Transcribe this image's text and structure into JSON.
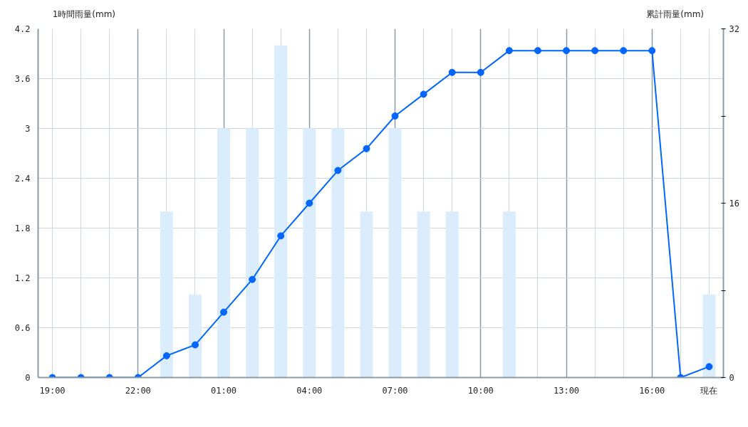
{
  "chart_data": {
    "type": "bar",
    "ylabel": "1時間雨量(mm)",
    "y2label": "累計雨量(mm)",
    "categories": [
      "19:00",
      null,
      null,
      "22:00",
      null,
      null,
      "01:00",
      null,
      null,
      "04:00",
      null,
      null,
      "07:00",
      null,
      null,
      "10:00",
      null,
      null,
      "13:00",
      null,
      null,
      "16:00",
      null,
      "現在"
    ],
    "series": [
      {
        "color": "#dbedfc",
        "values": [
          0,
          0,
          0,
          0,
          2,
          1,
          3,
          3,
          4,
          3,
          3,
          2,
          3,
          2,
          2,
          0,
          2,
          0,
          0,
          0,
          0,
          0,
          0,
          1
        ]
      },
      {
        "type": "line",
        "axis": "y2",
        "color": "#0066ff",
        "values": [
          0,
          0,
          0,
          0,
          2,
          3,
          6,
          9,
          13,
          16,
          19,
          21,
          24,
          26,
          28,
          28,
          30,
          30,
          30,
          30,
          30,
          30,
          0,
          1
        ]
      }
    ],
    "ylim": [
      0,
      4.2
    ],
    "yticks": [
      0,
      0.6,
      1.2,
      1.8,
      2.4,
      3,
      3.6,
      4.2
    ],
    "y2lim": [
      0,
      32
    ],
    "y2ticks": [
      0,
      {
        "value": 8,
        "label": null
      },
      16,
      {
        "value": 24,
        "label": null
      },
      32
    ],
    "grid": true,
    "marker": "circle",
    "line_style": "solid"
  }
}
